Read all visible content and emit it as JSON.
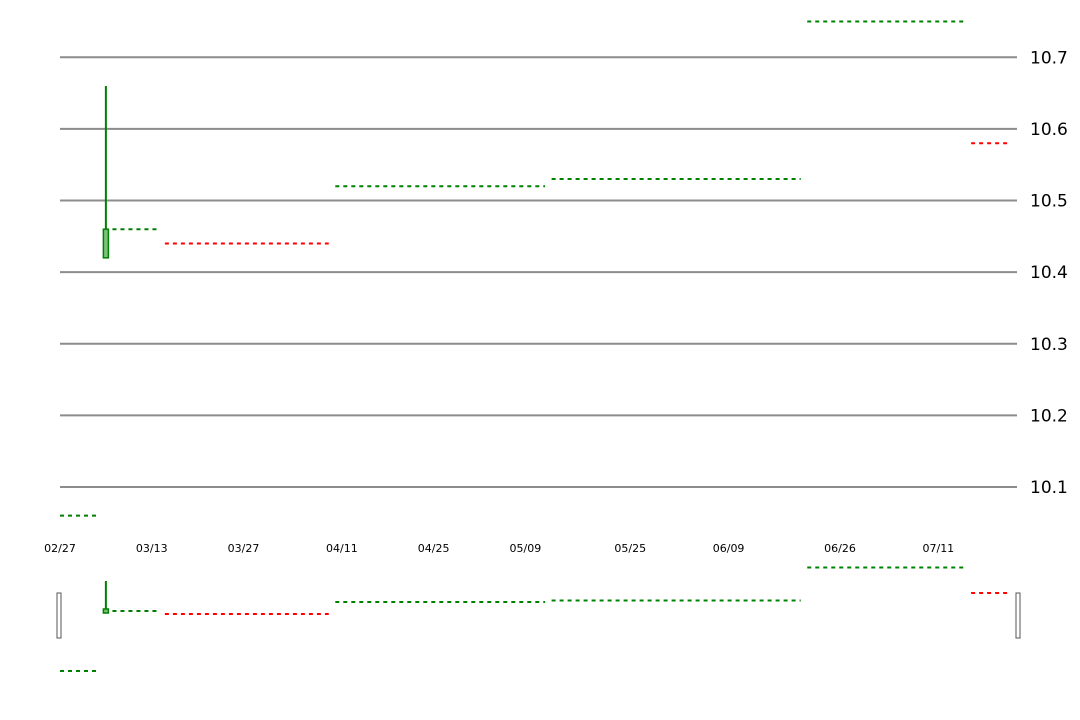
{
  "chart_data": {
    "type": "candlestick",
    "title": "",
    "xlabel": "",
    "ylabel": "",
    "grid": true,
    "ylim": [
      10.04,
      10.78
    ],
    "y_ticks": [
      10.7,
      10.6,
      10.5,
      10.4,
      10.3,
      10.2,
      10.1
    ],
    "x_tick_labels": [
      "02/27",
      "03/13",
      "03/27",
      "04/11",
      "04/25",
      "05/09",
      "05/25",
      "06/09",
      "06/26",
      "07/11"
    ],
    "candle": {
      "date": "03/06",
      "open": 10.42,
      "high": 10.66,
      "low": 10.42,
      "close": 10.46,
      "color": "#008000"
    },
    "levels": [
      {
        "from": "02/27",
        "to": "03/05",
        "value": 10.06,
        "color": "#008000"
      },
      {
        "from": "03/07",
        "to": "03/14",
        "value": 10.46,
        "color": "#008000"
      },
      {
        "from": "03/15",
        "to": "04/09",
        "value": 10.44,
        "color": "#ff0000"
      },
      {
        "from": "04/10",
        "to": "05/12",
        "value": 10.52,
        "color": "#008000"
      },
      {
        "from": "05/13",
        "to": "06/20",
        "value": 10.53,
        "color": "#008000"
      },
      {
        "from": "06/21",
        "to": "07/15",
        "value": 10.75,
        "color": "#008000"
      },
      {
        "from": "07/16",
        "to": "07/22",
        "value": 10.58,
        "color": "#ff0000"
      }
    ],
    "mini_panel": {
      "ylim": [
        10.0,
        10.8
      ]
    },
    "colors": {
      "up": "#008000",
      "down": "#ff0000",
      "grid": "#8c8c8c"
    }
  }
}
